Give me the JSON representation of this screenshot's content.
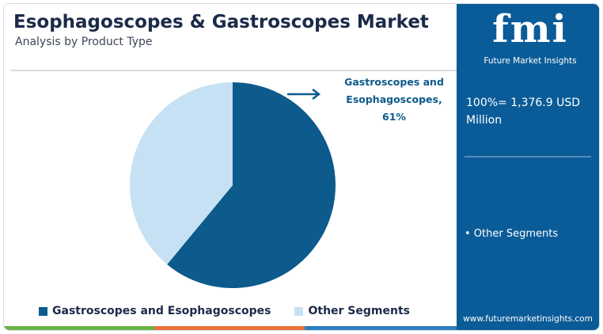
{
  "chart_data": {
    "type": "pie",
    "title": "Esophagoscopes & Gastroscopes Market",
    "subtitle": "Analysis by Product Type",
    "categories": [
      "Gastroscopes and Esophagoscopes",
      "Other Segments"
    ],
    "values": [
      61,
      39
    ],
    "value_labels": [
      "61%",
      null
    ],
    "colors": [
      "#0d5a8c",
      "#c6e1f3"
    ],
    "annotation": "Gastroscopes and Esophagoscopes,",
    "legend": "bottom"
  },
  "panel": {
    "logo": "fmi",
    "logo_caption": "Future Market Insights",
    "total": "100%= 1,376.9 USD Million",
    "segment_note": "• Other Segments",
    "website": "www.futuremarketinsights.com"
  }
}
